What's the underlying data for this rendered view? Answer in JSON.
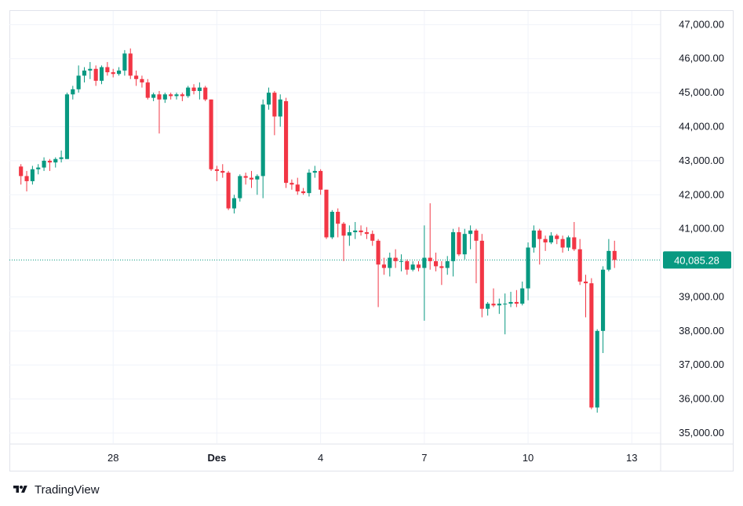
{
  "chart_data": {
    "type": "candlestick",
    "interval": "4h",
    "y_ticks": [
      47000,
      46000,
      45000,
      44000,
      43000,
      42000,
      41000,
      39000,
      38000,
      37000,
      36000,
      35000
    ],
    "y_tick_labels": [
      "47,000.00",
      "46,000.00",
      "45,000.00",
      "44,000.00",
      "43,000.00",
      "42,000.00",
      "41,000.00",
      "39,000.00",
      "38,000.00",
      "37,000.00",
      "36,000.00",
      "35,000.00"
    ],
    "ylim": [
      34700,
      47400
    ],
    "x_ticks": [
      {
        "label": "28",
        "index": 16,
        "bold": false
      },
      {
        "label": "Des",
        "index": 34,
        "bold": true
      },
      {
        "label": "4",
        "index": 52,
        "bold": false
      },
      {
        "label": "7",
        "index": 70,
        "bold": false
      },
      {
        "label": "10",
        "index": 88,
        "bold": false
      },
      {
        "label": "13",
        "index": 106,
        "bold": false
      }
    ],
    "x_range": [
      -2,
      111
    ],
    "last_price": 40085.28,
    "last_price_label": "40,085.28",
    "colors": {
      "up": "#089981",
      "down": "#f23645",
      "price_line": "#089981",
      "grid": "#f0f3fa"
    },
    "candles": [
      [
        42830,
        42900,
        42300,
        42550
      ],
      [
        42550,
        42700,
        42100,
        42400
      ],
      [
        42400,
        42850,
        42300,
        42750
      ],
      [
        42750,
        42900,
        42600,
        42800
      ],
      [
        42800,
        43100,
        42700,
        43000
      ],
      [
        43000,
        43050,
        42700,
        42950
      ],
      [
        42950,
        43100,
        42800,
        43050
      ],
      [
        43050,
        43300,
        42950,
        43100
      ],
      [
        43050,
        45000,
        43050,
        44950
      ],
      [
        44950,
        45200,
        44800,
        45100
      ],
      [
        45100,
        45800,
        45000,
        45500
      ],
      [
        45500,
        45750,
        45300,
        45650
      ],
      [
        45650,
        45900,
        45400,
        45700
      ],
      [
        45700,
        45800,
        45200,
        45350
      ],
      [
        45350,
        45800,
        45250,
        45750
      ],
      [
        45750,
        45900,
        45500,
        45600
      ],
      [
        45600,
        45700,
        45450,
        45550
      ],
      [
        45550,
        45750,
        45500,
        45650
      ],
      [
        45650,
        46250,
        45500,
        46150
      ],
      [
        46150,
        46300,
        45400,
        45500
      ],
      [
        45500,
        45650,
        45200,
        45400
      ],
      [
        45400,
        45500,
        45150,
        45300
      ],
      [
        45300,
        45400,
        44800,
        44850
      ],
      [
        44850,
        45000,
        44750,
        44950
      ],
      [
        44950,
        45050,
        43800,
        44800
      ],
      [
        44800,
        45000,
        44700,
        44950
      ],
      [
        44950,
        45000,
        44800,
        44900
      ],
      [
        44900,
        45000,
        44800,
        44950
      ],
      [
        44950,
        45000,
        44750,
        44900
      ],
      [
        44900,
        45200,
        44850,
        45150
      ],
      [
        45150,
        45250,
        44950,
        45050
      ],
      [
        45050,
        45300,
        44800,
        45150
      ],
      [
        45150,
        45200,
        44750,
        44800
      ],
      [
        44800,
        44800,
        42700,
        42750
      ],
      [
        42750,
        42850,
        42400,
        42700
      ],
      [
        42700,
        42900,
        42500,
        42650
      ],
      [
        42650,
        42700,
        41550,
        41600
      ],
      [
        41600,
        42000,
        41450,
        41900
      ],
      [
        41900,
        42600,
        41800,
        42550
      ],
      [
        42550,
        42650,
        42300,
        42500
      ],
      [
        42500,
        42700,
        42200,
        42450
      ],
      [
        42450,
        42600,
        42000,
        42550
      ],
      [
        42550,
        44800,
        41900,
        44650
      ],
      [
        44650,
        45150,
        44500,
        45000
      ],
      [
        45000,
        45050,
        43750,
        44300
      ],
      [
        44300,
        44950,
        44000,
        44800
      ],
      [
        44750,
        44850,
        42200,
        42350
      ],
      [
        42350,
        42450,
        42150,
        42300
      ],
      [
        42300,
        42500,
        42000,
        42100
      ],
      [
        42100,
        42200,
        42000,
        42050
      ],
      [
        42050,
        42750,
        41950,
        42650
      ],
      [
        42650,
        42850,
        42500,
        42700
      ],
      [
        42700,
        42750,
        42000,
        42150
      ],
      [
        42150,
        42150,
        40700,
        40750
      ],
      [
        40750,
        41550,
        40700,
        41500
      ],
      [
        41500,
        41600,
        40750,
        41150
      ],
      [
        41150,
        41200,
        40050,
        40800
      ],
      [
        40800,
        41100,
        40500,
        40900
      ],
      [
        40900,
        41200,
        40700,
        40950
      ],
      [
        40950,
        41100,
        40800,
        40900
      ],
      [
        40900,
        41050,
        40700,
        40850
      ],
      [
        40850,
        40950,
        40500,
        40650
      ],
      [
        40650,
        40700,
        38700,
        39950
      ],
      [
        39950,
        40150,
        39650,
        39850
      ],
      [
        39850,
        40300,
        39600,
        40150
      ],
      [
        40150,
        40400,
        39850,
        40050
      ],
      [
        40050,
        40250,
        39750,
        40050
      ],
      [
        40050,
        40100,
        39650,
        39800
      ],
      [
        39800,
        40050,
        39750,
        39950
      ],
      [
        39950,
        40050,
        39750,
        39850
      ],
      [
        39850,
        41100,
        38300,
        40150
      ],
      [
        40150,
        41750,
        39800,
        40050
      ],
      [
        40050,
        40300,
        39750,
        39900
      ],
      [
        39900,
        40050,
        39350,
        39850
      ],
      [
        39850,
        40200,
        39650,
        40050
      ],
      [
        40050,
        41000,
        39600,
        40900
      ],
      [
        40900,
        41050,
        40200,
        40250
      ],
      [
        40250,
        41000,
        40100,
        40850
      ],
      [
        40850,
        41100,
        40400,
        40950
      ],
      [
        40950,
        41000,
        39400,
        40650
      ],
      [
        40650,
        40850,
        38400,
        38650
      ],
      [
        38650,
        38850,
        38450,
        38800
      ],
      [
        38800,
        39250,
        38700,
        38750
      ],
      [
        38750,
        38950,
        38500,
        38800
      ],
      [
        38800,
        39100,
        37900,
        38800
      ],
      [
        38800,
        39150,
        38700,
        38850
      ],
      [
        38850,
        39200,
        38700,
        38800
      ],
      [
        38800,
        39450,
        38750,
        39250
      ],
      [
        39250,
        40600,
        38900,
        40450
      ],
      [
        40450,
        41100,
        40300,
        40950
      ],
      [
        40950,
        41000,
        39950,
        40700
      ],
      [
        40700,
        40800,
        40350,
        40600
      ],
      [
        40600,
        40900,
        40550,
        40800
      ],
      [
        40800,
        40850,
        40550,
        40700
      ],
      [
        40700,
        40800,
        40300,
        40450
      ],
      [
        40450,
        40800,
        40350,
        40750
      ],
      [
        40750,
        41200,
        40350,
        40400
      ],
      [
        40400,
        40700,
        39350,
        39450
      ],
      [
        39450,
        39650,
        38400,
        39400
      ],
      [
        39400,
        39550,
        35700,
        35750
      ],
      [
        35750,
        38050,
        35600,
        38000
      ],
      [
        38000,
        39900,
        37350,
        39800
      ],
      [
        39800,
        40700,
        39750,
        40350
      ],
      [
        40350,
        40650,
        39850,
        40085
      ]
    ]
  },
  "watermark": {
    "text": "TradingView"
  }
}
